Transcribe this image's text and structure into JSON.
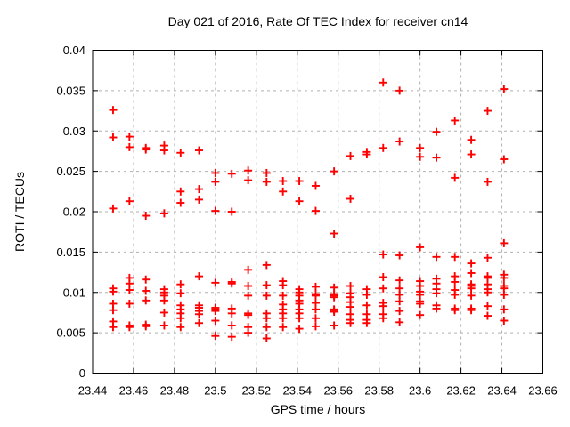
{
  "chart_data": {
    "type": "scatter",
    "title": "Day 021 of 2016, Rate Of TEC Index for receiver cn14",
    "xlabel": "GPS time / hours",
    "ylabel": "ROTI / TECUs",
    "xlim": [
      23.44,
      23.66
    ],
    "ylim": [
      0,
      0.04
    ],
    "xticks": {
      "values": [
        23.44,
        23.46,
        23.48,
        23.5,
        23.52,
        23.54,
        23.56,
        23.58,
        23.6,
        23.62,
        23.64,
        23.66
      ],
      "labels": [
        "23.44",
        "23.46",
        "23.48",
        "23.5",
        "23.52",
        "23.54",
        "23.56",
        "23.58",
        "23.6",
        "23.62",
        "23.64",
        "23.66"
      ]
    },
    "yticks": {
      "values": [
        0,
        0.005,
        0.01,
        0.015,
        0.02,
        0.025,
        0.03,
        0.035,
        0.04
      ],
      "labels": [
        "0",
        "0.005",
        "0.01",
        "0.015",
        "0.02",
        "0.025",
        "0.03",
        "0.035",
        "0.04"
      ]
    },
    "grid": true,
    "legend": "none",
    "marker": {
      "shape": "plus",
      "color": "#ff0000"
    },
    "colors": {
      "grid": "#b0b0b0",
      "axis": "#000000",
      "text": "#000000",
      "background": "#ffffff"
    },
    "series": [
      {
        "name": "ROTI",
        "points": [
          [
            23.45,
            0.0326
          ],
          [
            23.45,
            0.0292
          ],
          [
            23.45,
            0.0204
          ],
          [
            23.45,
            0.0105
          ],
          [
            23.45,
            0.0101
          ],
          [
            23.45,
            0.0086
          ],
          [
            23.45,
            0.0078
          ],
          [
            23.45,
            0.0064
          ],
          [
            23.45,
            0.0057
          ],
          [
            23.458,
            0.0293
          ],
          [
            23.458,
            0.028
          ],
          [
            23.458,
            0.0213
          ],
          [
            23.458,
            0.0118
          ],
          [
            23.458,
            0.0111
          ],
          [
            23.458,
            0.0103
          ],
          [
            23.458,
            0.0086
          ],
          [
            23.458,
            0.0059
          ],
          [
            23.458,
            0.0057
          ],
          [
            23.466,
            0.0279
          ],
          [
            23.466,
            0.0277
          ],
          [
            23.466,
            0.0195
          ],
          [
            23.466,
            0.0116
          ],
          [
            23.466,
            0.0102
          ],
          [
            23.466,
            0.009
          ],
          [
            23.466,
            0.006
          ],
          [
            23.466,
            0.0058
          ],
          [
            23.475,
            0.0282
          ],
          [
            23.475,
            0.0276
          ],
          [
            23.475,
            0.0198
          ],
          [
            23.475,
            0.0104
          ],
          [
            23.475,
            0.01
          ],
          [
            23.475,
            0.0096
          ],
          [
            23.475,
            0.009
          ],
          [
            23.475,
            0.0075
          ],
          [
            23.475,
            0.0059
          ],
          [
            23.483,
            0.0273
          ],
          [
            23.483,
            0.0225
          ],
          [
            23.483,
            0.0211
          ],
          [
            23.483,
            0.011
          ],
          [
            23.483,
            0.0099
          ],
          [
            23.483,
            0.0084
          ],
          [
            23.483,
            0.0079
          ],
          [
            23.483,
            0.0074
          ],
          [
            23.483,
            0.0068
          ],
          [
            23.483,
            0.0057
          ],
          [
            23.492,
            0.0276
          ],
          [
            23.492,
            0.0228
          ],
          [
            23.492,
            0.0215
          ],
          [
            23.492,
            0.012
          ],
          [
            23.492,
            0.0084
          ],
          [
            23.492,
            0.0081
          ],
          [
            23.492,
            0.0077
          ],
          [
            23.492,
            0.0073
          ],
          [
            23.492,
            0.0062
          ],
          [
            23.5,
            0.0248
          ],
          [
            23.5,
            0.0237
          ],
          [
            23.5,
            0.0201
          ],
          [
            23.5,
            0.0112
          ],
          [
            23.5,
            0.0081
          ],
          [
            23.5,
            0.0079
          ],
          [
            23.5,
            0.0077
          ],
          [
            23.5,
            0.0065
          ],
          [
            23.5,
            0.0046
          ],
          [
            23.508,
            0.0247
          ],
          [
            23.508,
            0.02
          ],
          [
            23.508,
            0.0113
          ],
          [
            23.508,
            0.0111
          ],
          [
            23.508,
            0.008
          ],
          [
            23.508,
            0.0074
          ],
          [
            23.508,
            0.0059
          ],
          [
            23.508,
            0.0045
          ],
          [
            23.516,
            0.0251
          ],
          [
            23.516,
            0.0239
          ],
          [
            23.516,
            0.0128
          ],
          [
            23.516,
            0.0108
          ],
          [
            23.516,
            0.0096
          ],
          [
            23.516,
            0.0074
          ],
          [
            23.516,
            0.0072
          ],
          [
            23.516,
            0.0057
          ],
          [
            23.516,
            0.005
          ],
          [
            23.525,
            0.0248
          ],
          [
            23.525,
            0.0237
          ],
          [
            23.525,
            0.0134
          ],
          [
            23.525,
            0.0109
          ],
          [
            23.525,
            0.0096
          ],
          [
            23.525,
            0.0074
          ],
          [
            23.525,
            0.0068
          ],
          [
            23.525,
            0.0057
          ],
          [
            23.525,
            0.0043
          ],
          [
            23.533,
            0.0238
          ],
          [
            23.533,
            0.0225
          ],
          [
            23.533,
            0.0114
          ],
          [
            23.533,
            0.0109
          ],
          [
            23.533,
            0.0096
          ],
          [
            23.533,
            0.0085
          ],
          [
            23.533,
            0.0079
          ],
          [
            23.533,
            0.0074
          ],
          [
            23.533,
            0.0068
          ],
          [
            23.533,
            0.0057
          ],
          [
            23.541,
            0.0238
          ],
          [
            23.541,
            0.0213
          ],
          [
            23.541,
            0.0104
          ],
          [
            23.541,
            0.01
          ],
          [
            23.541,
            0.0096
          ],
          [
            23.541,
            0.009
          ],
          [
            23.541,
            0.0086
          ],
          [
            23.541,
            0.0079
          ],
          [
            23.541,
            0.0074
          ],
          [
            23.541,
            0.0068
          ],
          [
            23.541,
            0.0055
          ],
          [
            23.549,
            0.0232
          ],
          [
            23.549,
            0.0201
          ],
          [
            23.549,
            0.0107
          ],
          [
            23.549,
            0.0098
          ],
          [
            23.549,
            0.0096
          ],
          [
            23.549,
            0.0087
          ],
          [
            23.549,
            0.0079
          ],
          [
            23.549,
            0.0068
          ],
          [
            23.549,
            0.0058
          ],
          [
            23.558,
            0.025
          ],
          [
            23.558,
            0.0173
          ],
          [
            23.558,
            0.0106
          ],
          [
            23.558,
            0.0098
          ],
          [
            23.558,
            0.0096
          ],
          [
            23.558,
            0.0094
          ],
          [
            23.558,
            0.0079
          ],
          [
            23.558,
            0.0078
          ],
          [
            23.558,
            0.0076
          ],
          [
            23.558,
            0.0059
          ],
          [
            23.566,
            0.0269
          ],
          [
            23.566,
            0.0216
          ],
          [
            23.566,
            0.0108
          ],
          [
            23.566,
            0.0099
          ],
          [
            23.566,
            0.0094
          ],
          [
            23.566,
            0.0088
          ],
          [
            23.566,
            0.0082
          ],
          [
            23.566,
            0.0073
          ],
          [
            23.566,
            0.0066
          ],
          [
            23.566,
            0.0062
          ],
          [
            23.574,
            0.0274
          ],
          [
            23.574,
            0.0271
          ],
          [
            23.574,
            0.0104
          ],
          [
            23.574,
            0.0097
          ],
          [
            23.574,
            0.0084
          ],
          [
            23.574,
            0.0073
          ],
          [
            23.574,
            0.0066
          ],
          [
            23.574,
            0.0062
          ],
          [
            23.582,
            0.036
          ],
          [
            23.582,
            0.0279
          ],
          [
            23.582,
            0.0147
          ],
          [
            23.582,
            0.0119
          ],
          [
            23.582,
            0.0105
          ],
          [
            23.582,
            0.0087
          ],
          [
            23.582,
            0.0083
          ],
          [
            23.582,
            0.0073
          ],
          [
            23.582,
            0.0068
          ],
          [
            23.59,
            0.035
          ],
          [
            23.59,
            0.0287
          ],
          [
            23.59,
            0.0146
          ],
          [
            23.59,
            0.0115
          ],
          [
            23.59,
            0.0105
          ],
          [
            23.59,
            0.0097
          ],
          [
            23.59,
            0.0089
          ],
          [
            23.59,
            0.0077
          ],
          [
            23.59,
            0.0063
          ],
          [
            23.6,
            0.0279
          ],
          [
            23.6,
            0.0268
          ],
          [
            23.6,
            0.0156
          ],
          [
            23.6,
            0.0114
          ],
          [
            23.6,
            0.0108
          ],
          [
            23.6,
            0.0101
          ],
          [
            23.6,
            0.0097
          ],
          [
            23.6,
            0.0089
          ],
          [
            23.6,
            0.0086
          ],
          [
            23.6,
            0.0072
          ],
          [
            23.608,
            0.0299
          ],
          [
            23.608,
            0.0267
          ],
          [
            23.608,
            0.0144
          ],
          [
            23.608,
            0.0117
          ],
          [
            23.608,
            0.0111
          ],
          [
            23.608,
            0.0104
          ],
          [
            23.608,
            0.0099
          ],
          [
            23.608,
            0.0084
          ],
          [
            23.608,
            0.008
          ],
          [
            23.617,
            0.0313
          ],
          [
            23.617,
            0.0242
          ],
          [
            23.617,
            0.0144
          ],
          [
            23.617,
            0.012
          ],
          [
            23.617,
            0.0113
          ],
          [
            23.617,
            0.0103
          ],
          [
            23.617,
            0.0097
          ],
          [
            23.617,
            0.008
          ],
          [
            23.617,
            0.0078
          ],
          [
            23.625,
            0.0289
          ],
          [
            23.625,
            0.0271
          ],
          [
            23.625,
            0.0136
          ],
          [
            23.625,
            0.0124
          ],
          [
            23.625,
            0.011
          ],
          [
            23.625,
            0.0108
          ],
          [
            23.625,
            0.0105
          ],
          [
            23.625,
            0.0096
          ],
          [
            23.625,
            0.008
          ],
          [
            23.625,
            0.0078
          ],
          [
            23.633,
            0.0325
          ],
          [
            23.633,
            0.0237
          ],
          [
            23.633,
            0.0143
          ],
          [
            23.633,
            0.012
          ],
          [
            23.633,
            0.0118
          ],
          [
            23.633,
            0.011
          ],
          [
            23.633,
            0.0104
          ],
          [
            23.633,
            0.01
          ],
          [
            23.633,
            0.0083
          ],
          [
            23.633,
            0.0071
          ],
          [
            23.641,
            0.0352
          ],
          [
            23.641,
            0.0265
          ],
          [
            23.641,
            0.0161
          ],
          [
            23.641,
            0.0122
          ],
          [
            23.641,
            0.0118
          ],
          [
            23.641,
            0.0108
          ],
          [
            23.641,
            0.0105
          ],
          [
            23.641,
            0.0097
          ],
          [
            23.641,
            0.0079
          ],
          [
            23.641,
            0.0065
          ]
        ]
      }
    ]
  }
}
